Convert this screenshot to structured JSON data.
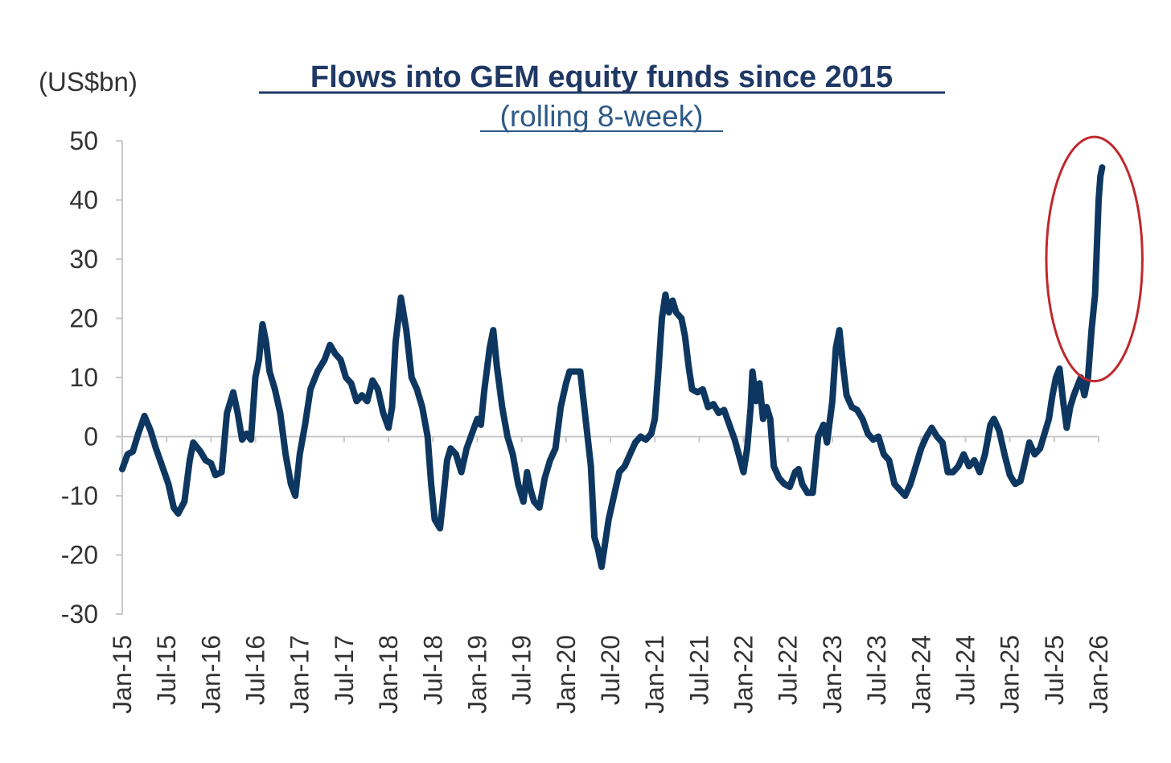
{
  "chart_data": {
    "type": "line",
    "title": "Flows into GEM equity funds since 2015",
    "subtitle": "(rolling 8-week)",
    "ylabel": "(US$bn)",
    "xlabel": "",
    "ylim": [
      -30,
      50
    ],
    "yticks": [
      50,
      40,
      30,
      20,
      10,
      0,
      -10,
      -20,
      -30
    ],
    "grid": false,
    "categories": [
      "Jan-15",
      "Jul-15",
      "Jan-16",
      "Jul-16",
      "Jan-17",
      "Jul-17",
      "Jan-18",
      "Jul-18",
      "Jan-19",
      "Jul-19",
      "Jan-20",
      "Jul-20",
      "Jan-21",
      "Jul-21",
      "Jan-22",
      "Jul-22",
      "Jan-23",
      "Jul-23",
      "Jan-24",
      "Jul-24",
      "Jan-25",
      "Jul-25",
      "Jan-26"
    ],
    "x_range": [
      2015.0,
      2026.0
    ],
    "annotation": "highlight-ellipse-around-recent-surge",
    "colors": {
      "series": "#0d3760",
      "axis": "#c8c8c8",
      "ellipse": "#c0282d",
      "title": "#1f3864"
    },
    "series": [
      {
        "name": "Flows into GEM equity funds (rolling 8-week)",
        "points": [
          [
            2015.0,
            -5.5
          ],
          [
            2015.06,
            -3.0
          ],
          [
            2015.12,
            -2.5
          ],
          [
            2015.18,
            0.5
          ],
          [
            2015.25,
            3.5
          ],
          [
            2015.32,
            1.0
          ],
          [
            2015.38,
            -2.0
          ],
          [
            2015.45,
            -5.0
          ],
          [
            2015.52,
            -8.0
          ],
          [
            2015.58,
            -12.0
          ],
          [
            2015.63,
            -13.0
          ],
          [
            2015.7,
            -11.0
          ],
          [
            2015.76,
            -4.0
          ],
          [
            2015.8,
            -1.0
          ],
          [
            2015.88,
            -2.5
          ],
          [
            2015.94,
            -4.0
          ],
          [
            2016.0,
            -4.5
          ],
          [
            2016.05,
            -6.5
          ],
          [
            2016.12,
            -6.0
          ],
          [
            2016.18,
            4.0
          ],
          [
            2016.25,
            7.5
          ],
          [
            2016.3,
            4.0
          ],
          [
            2016.35,
            -0.5
          ],
          [
            2016.4,
            0.5
          ],
          [
            2016.45,
            -0.5
          ],
          [
            2016.5,
            10.0
          ],
          [
            2016.54,
            13.0
          ],
          [
            2016.58,
            19.0
          ],
          [
            2016.62,
            16.0
          ],
          [
            2016.66,
            11.0
          ],
          [
            2016.72,
            8.0
          ],
          [
            2016.78,
            4.0
          ],
          [
            2016.84,
            -3.0
          ],
          [
            2016.9,
            -8.0
          ],
          [
            2016.95,
            -10.0
          ],
          [
            2017.0,
            -3.0
          ],
          [
            2017.06,
            2.0
          ],
          [
            2017.12,
            8.0
          ],
          [
            2017.2,
            11.0
          ],
          [
            2017.28,
            13.0
          ],
          [
            2017.34,
            15.5
          ],
          [
            2017.4,
            14.0
          ],
          [
            2017.46,
            13.0
          ],
          [
            2017.52,
            10.0
          ],
          [
            2017.58,
            9.0
          ],
          [
            2017.64,
            6.0
          ],
          [
            2017.7,
            7.0
          ],
          [
            2017.76,
            6.0
          ],
          [
            2017.82,
            9.5
          ],
          [
            2017.88,
            8.0
          ],
          [
            2017.94,
            4.0
          ],
          [
            2018.0,
            1.5
          ],
          [
            2018.04,
            5.0
          ],
          [
            2018.08,
            16.0
          ],
          [
            2018.14,
            23.5
          ],
          [
            2018.2,
            18.0
          ],
          [
            2018.26,
            10.0
          ],
          [
            2018.32,
            8.0
          ],
          [
            2018.38,
            5.0
          ],
          [
            2018.44,
            0.0
          ],
          [
            2018.48,
            -8.0
          ],
          [
            2018.52,
            -14.0
          ],
          [
            2018.58,
            -15.5
          ],
          [
            2018.62,
            -10.0
          ],
          [
            2018.66,
            -4.0
          ],
          [
            2018.7,
            -2.0
          ],
          [
            2018.76,
            -3.0
          ],
          [
            2018.82,
            -6.0
          ],
          [
            2018.88,
            -2.0
          ],
          [
            2018.94,
            0.5
          ],
          [
            2019.0,
            3.0
          ],
          [
            2019.04,
            2.0
          ],
          [
            2019.08,
            8.0
          ],
          [
            2019.14,
            15.0
          ],
          [
            2019.18,
            18.0
          ],
          [
            2019.22,
            12.0
          ],
          [
            2019.28,
            5.0
          ],
          [
            2019.34,
            0.0
          ],
          [
            2019.4,
            -3.0
          ],
          [
            2019.46,
            -8.0
          ],
          [
            2019.52,
            -11.0
          ],
          [
            2019.56,
            -6.0
          ],
          [
            2019.6,
            -9.0
          ],
          [
            2019.64,
            -11.0
          ],
          [
            2019.7,
            -12.0
          ],
          [
            2019.76,
            -7.0
          ],
          [
            2019.82,
            -4.0
          ],
          [
            2019.88,
            -2.0
          ],
          [
            2019.94,
            5.0
          ],
          [
            2020.0,
            9.0
          ],
          [
            2020.04,
            11.0
          ],
          [
            2020.1,
            11.0
          ],
          [
            2020.16,
            11.0
          ],
          [
            2020.22,
            3.0
          ],
          [
            2020.28,
            -5.0
          ],
          [
            2020.32,
            -17.0
          ],
          [
            2020.36,
            -19.0
          ],
          [
            2020.4,
            -22.0
          ],
          [
            2020.44,
            -18.0
          ],
          [
            2020.48,
            -14.0
          ],
          [
            2020.54,
            -10.0
          ],
          [
            2020.6,
            -6.0
          ],
          [
            2020.66,
            -5.0
          ],
          [
            2020.72,
            -3.0
          ],
          [
            2020.78,
            -1.0
          ],
          [
            2020.84,
            0.0
          ],
          [
            2020.9,
            -0.5
          ],
          [
            2020.96,
            0.5
          ],
          [
            2021.0,
            3.0
          ],
          [
            2021.04,
            11.0
          ],
          [
            2021.08,
            20.0
          ],
          [
            2021.12,
            24.0
          ],
          [
            2021.16,
            21.0
          ],
          [
            2021.2,
            23.0
          ],
          [
            2021.24,
            21.0
          ],
          [
            2021.3,
            20.0
          ],
          [
            2021.34,
            17.0
          ],
          [
            2021.38,
            12.0
          ],
          [
            2021.42,
            8.0
          ],
          [
            2021.48,
            7.5
          ],
          [
            2021.54,
            8.0
          ],
          [
            2021.6,
            5.0
          ],
          [
            2021.66,
            5.5
          ],
          [
            2021.72,
            4.0
          ],
          [
            2021.78,
            4.5
          ],
          [
            2021.84,
            2.0
          ],
          [
            2021.9,
            -0.5
          ],
          [
            2022.0,
            -6.0
          ],
          [
            2022.04,
            -2.0
          ],
          [
            2022.08,
            5.0
          ],
          [
            2022.1,
            11.0
          ],
          [
            2022.14,
            6.0
          ],
          [
            2022.18,
            9.0
          ],
          [
            2022.22,
            3.0
          ],
          [
            2022.26,
            5.0
          ],
          [
            2022.3,
            3.0
          ],
          [
            2022.34,
            -5.0
          ],
          [
            2022.4,
            -7.0
          ],
          [
            2022.46,
            -8.0
          ],
          [
            2022.52,
            -8.5
          ],
          [
            2022.58,
            -6.0
          ],
          [
            2022.62,
            -5.5
          ],
          [
            2022.66,
            -8.0
          ],
          [
            2022.72,
            -9.5
          ],
          [
            2022.78,
            -9.5
          ],
          [
            2022.84,
            0.0
          ],
          [
            2022.9,
            2.0
          ],
          [
            2022.94,
            -1.0
          ],
          [
            2023.0,
            6.0
          ],
          [
            2023.04,
            15.0
          ],
          [
            2023.08,
            18.0
          ],
          [
            2023.12,
            12.0
          ],
          [
            2023.16,
            7.0
          ],
          [
            2023.22,
            5.0
          ],
          [
            2023.28,
            4.5
          ],
          [
            2023.34,
            3.0
          ],
          [
            2023.4,
            0.5
          ],
          [
            2023.46,
            -0.5
          ],
          [
            2023.52,
            0.0
          ],
          [
            2023.58,
            -3.0
          ],
          [
            2023.64,
            -4.0
          ],
          [
            2023.7,
            -8.0
          ],
          [
            2023.76,
            -9.0
          ],
          [
            2023.82,
            -10.0
          ],
          [
            2023.88,
            -8.0
          ],
          [
            2023.94,
            -5.0
          ],
          [
            2024.0,
            -2.0
          ],
          [
            2024.06,
            0.0
          ],
          [
            2024.12,
            1.5
          ],
          [
            2024.18,
            0.0
          ],
          [
            2024.24,
            -1.0
          ],
          [
            2024.3,
            -6.0
          ],
          [
            2024.36,
            -6.0
          ],
          [
            2024.42,
            -5.0
          ],
          [
            2024.48,
            -3.0
          ],
          [
            2024.54,
            -5.0
          ],
          [
            2024.6,
            -4.0
          ],
          [
            2024.66,
            -6.0
          ],
          [
            2024.72,
            -3.0
          ],
          [
            2024.78,
            2.0
          ],
          [
            2024.82,
            3.0
          ],
          [
            2024.88,
            1.0
          ],
          [
            2024.94,
            -3.0
          ],
          [
            2025.0,
            -6.5
          ],
          [
            2025.06,
            -8.0
          ],
          [
            2025.12,
            -7.5
          ],
          [
            2025.16,
            -5.0
          ],
          [
            2025.22,
            -1.0
          ],
          [
            2025.28,
            -3.0
          ],
          [
            2025.34,
            -2.0
          ],
          [
            2025.4,
            1.0
          ],
          [
            2025.44,
            3.0
          ],
          [
            2025.48,
            7.0
          ],
          [
            2025.52,
            10.0
          ],
          [
            2025.56,
            11.5
          ],
          [
            2025.6,
            6.0
          ],
          [
            2025.64,
            1.5
          ],
          [
            2025.68,
            5.0
          ],
          [
            2025.72,
            7.0
          ],
          [
            2025.76,
            8.5
          ],
          [
            2025.8,
            10.0
          ],
          [
            2025.84,
            7.0
          ],
          [
            2025.88,
            10.0
          ],
          [
            2025.9,
            14.0
          ],
          [
            2025.92,
            18.0
          ],
          [
            2025.94,
            21.0
          ],
          [
            2025.96,
            24.0
          ],
          [
            2025.98,
            32.0
          ],
          [
            2026.0,
            40.0
          ],
          [
            2026.02,
            44.0
          ],
          [
            2026.04,
            45.5
          ]
        ]
      }
    ]
  }
}
